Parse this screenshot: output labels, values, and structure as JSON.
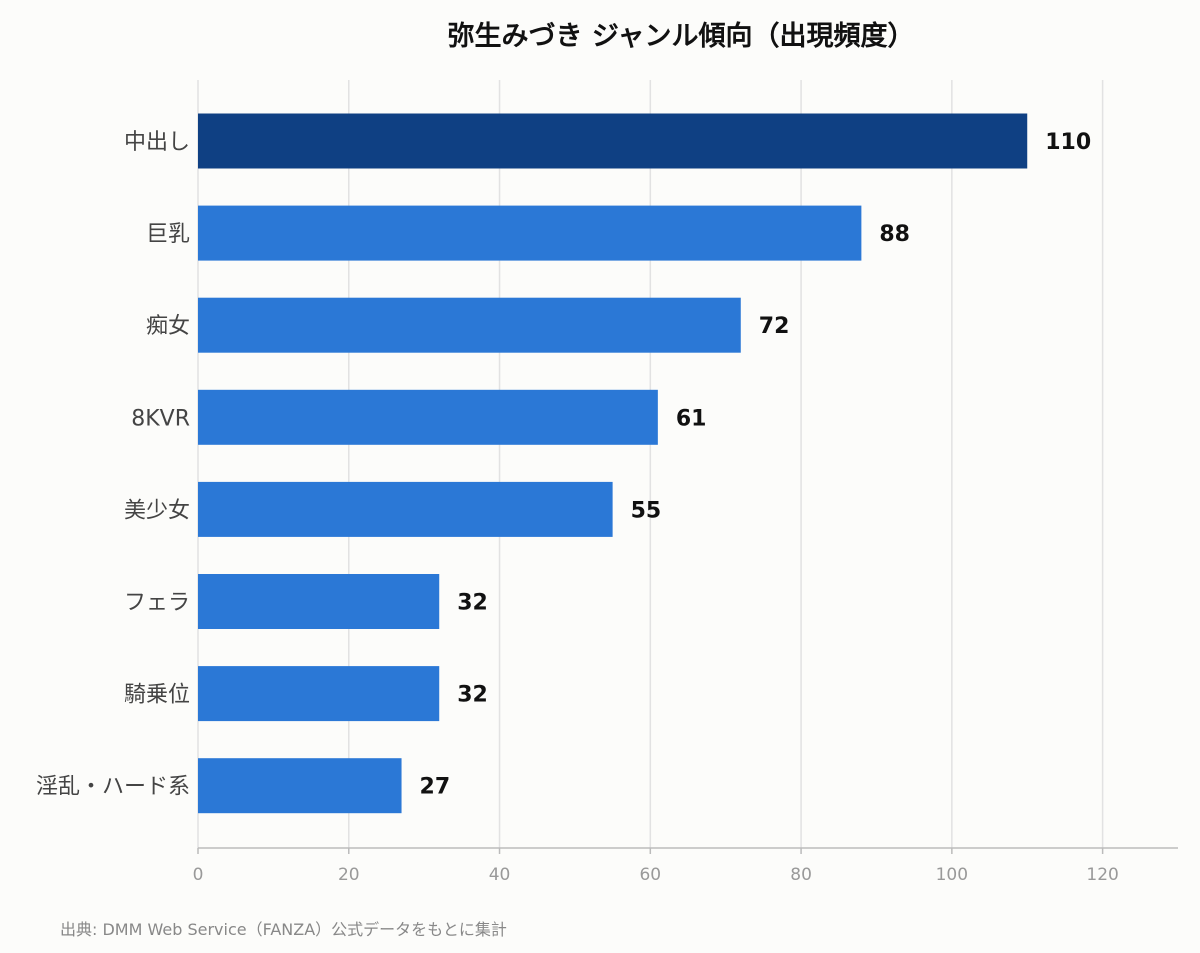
{
  "chart_data": {
    "type": "bar",
    "orientation": "horizontal",
    "title": "弥生みづき ジャンル傾向（出現頻度）",
    "categories": [
      "中出し",
      "巨乳",
      "痴女",
      "8KVR",
      "美少女",
      "フェラ",
      "騎乗位",
      "淫乱・ハード系"
    ],
    "values": [
      110,
      88,
      72,
      61,
      55,
      32,
      32,
      27
    ],
    "xlim": [
      0,
      130
    ],
    "x_ticks": [
      0,
      20,
      40,
      60,
      80,
      100,
      120
    ],
    "grid": "vertical",
    "legend": "none",
    "colors": {
      "highlight": "#0f4083",
      "bar": "#2b78d6",
      "grid": "#e2e2e2",
      "axis": "#bbbbbb"
    }
  },
  "source": "出典: DMM Web Service（FANZA）公式データをもとに集計"
}
